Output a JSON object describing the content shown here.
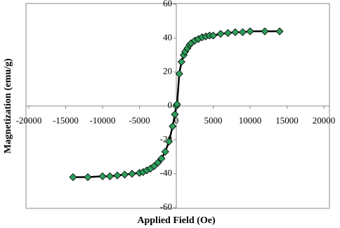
{
  "chart_data": {
    "type": "line",
    "x_label": "Applied Field (Oe)",
    "y_label": "Magnetization (emu/g)",
    "xlim": [
      -20000,
      20000
    ],
    "xticks": [
      -20000,
      -15000,
      -10000,
      -5000,
      0,
      5000,
      10000,
      15000,
      20000
    ],
    "ylim": [
      -60,
      60
    ],
    "yticks": [
      -60,
      -40,
      -20,
      0,
      20,
      40,
      60
    ],
    "grid": false,
    "series": [
      {
        "color": "#2e9e5b",
        "line_color": "#000000",
        "x": [
          -14000,
          -12000,
          -10000,
          -9000,
          -8000,
          -7000,
          -6000,
          -5000,
          -4500,
          -4000,
          -3500,
          -3000,
          -2500,
          -2000,
          -1500,
          -1000,
          -500,
          -200,
          0,
          100,
          400,
          700,
          1000,
          1200,
          1500,
          1800,
          2000,
          2500,
          3000,
          3500,
          4000,
          4500,
          5000,
          6000,
          7000,
          8000,
          9000,
          10000,
          12000,
          14000
        ],
        "values": [
          -42,
          -42,
          -41.5,
          -41.5,
          -41,
          -40.5,
          -40,
          -39.5,
          -39,
          -38,
          -37,
          -35.5,
          -33.5,
          -31,
          -27,
          -21,
          -12,
          -5,
          0,
          1,
          19,
          26,
          30,
          32,
          34,
          36,
          37,
          38.5,
          39.5,
          40.5,
          41,
          41.5,
          41.5,
          42.5,
          43,
          43.5,
          43.5,
          44,
          44,
          44
        ]
      }
    ]
  }
}
